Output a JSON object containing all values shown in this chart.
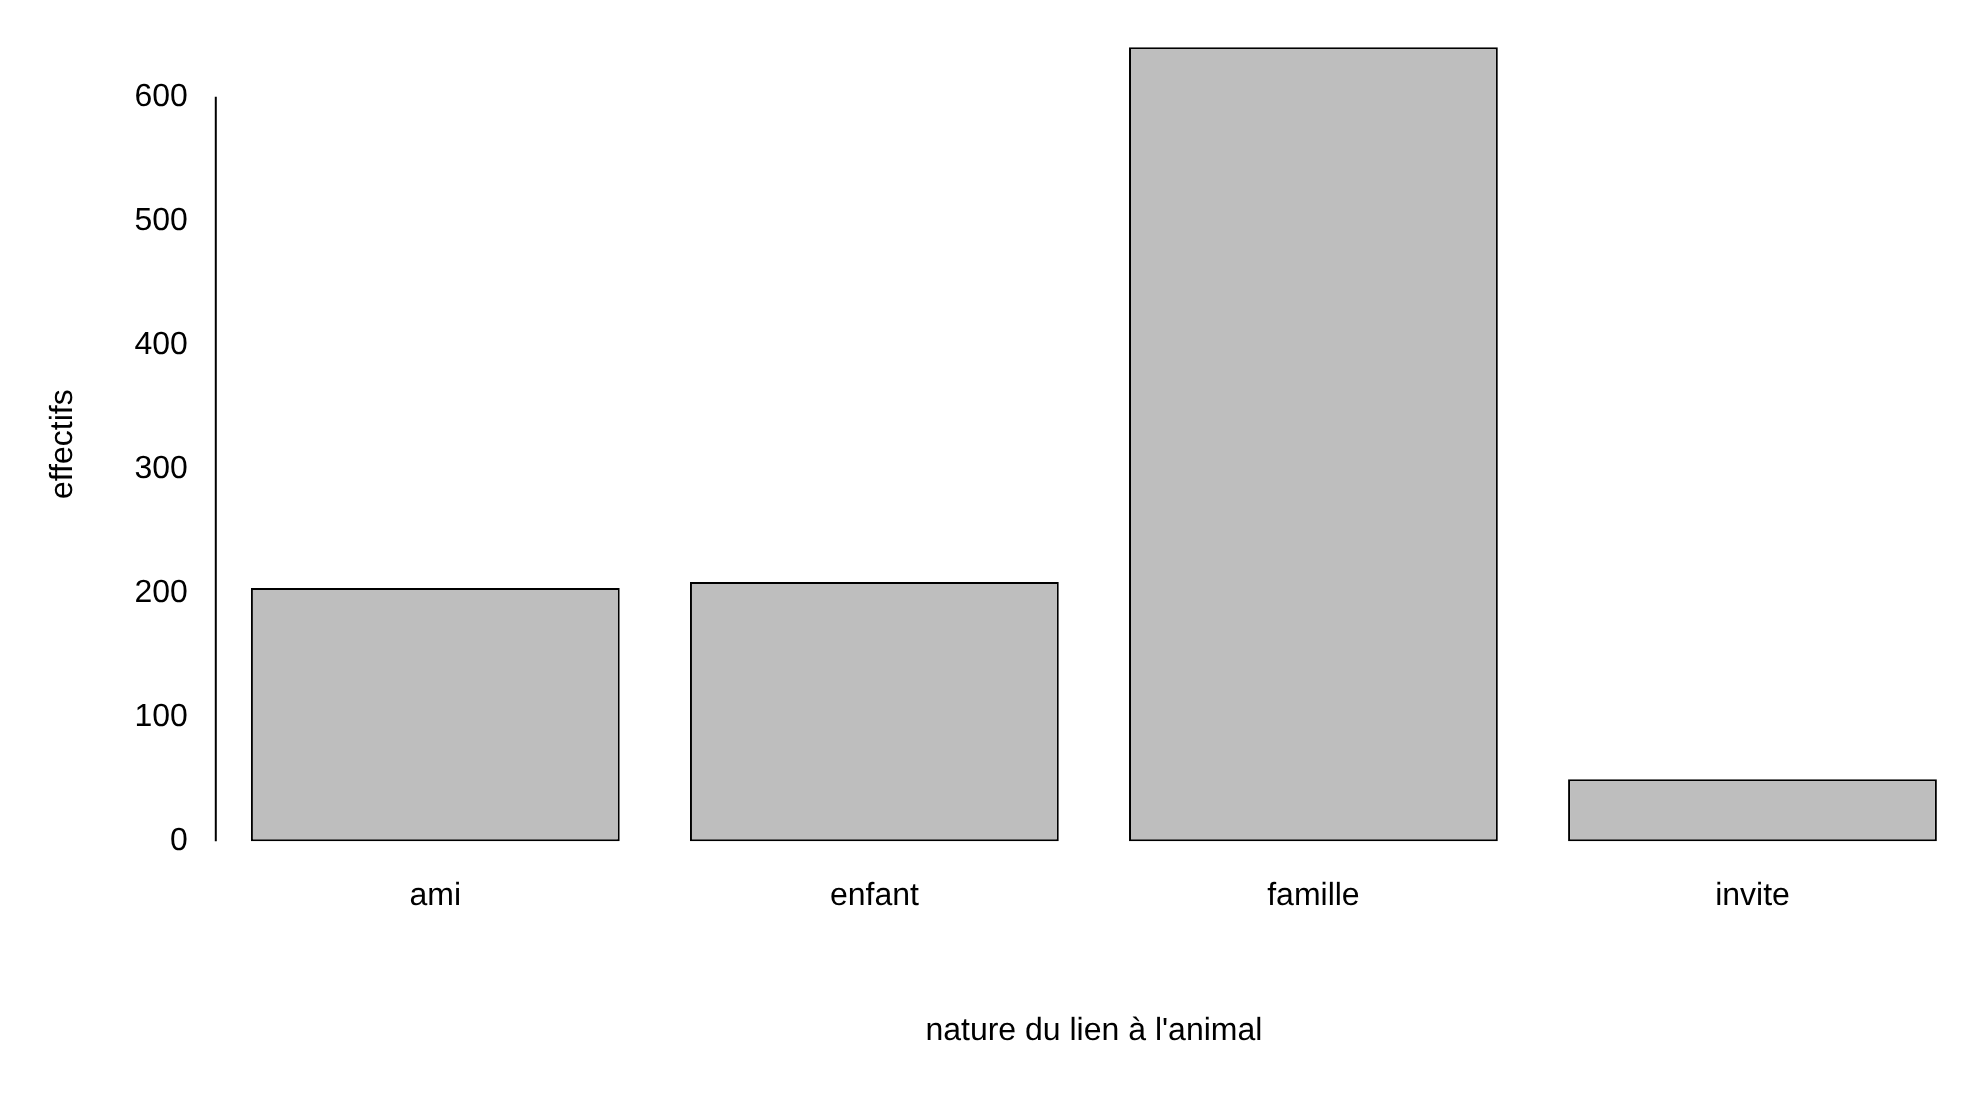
{
  "chart_data": {
    "type": "bar",
    "xlabel": "nature du lien à l'animal",
    "ylabel": "effectifs",
    "categories": [
      "ami",
      "enfant",
      "famille",
      "invite"
    ],
    "values": [
      204,
      209,
      640,
      50
    ],
    "color": "#bebebe",
    "ylim": [
      0,
      640
    ],
    "yticks": [
      0,
      100,
      200,
      300,
      400,
      500,
      600
    ],
    "grid": false
  }
}
